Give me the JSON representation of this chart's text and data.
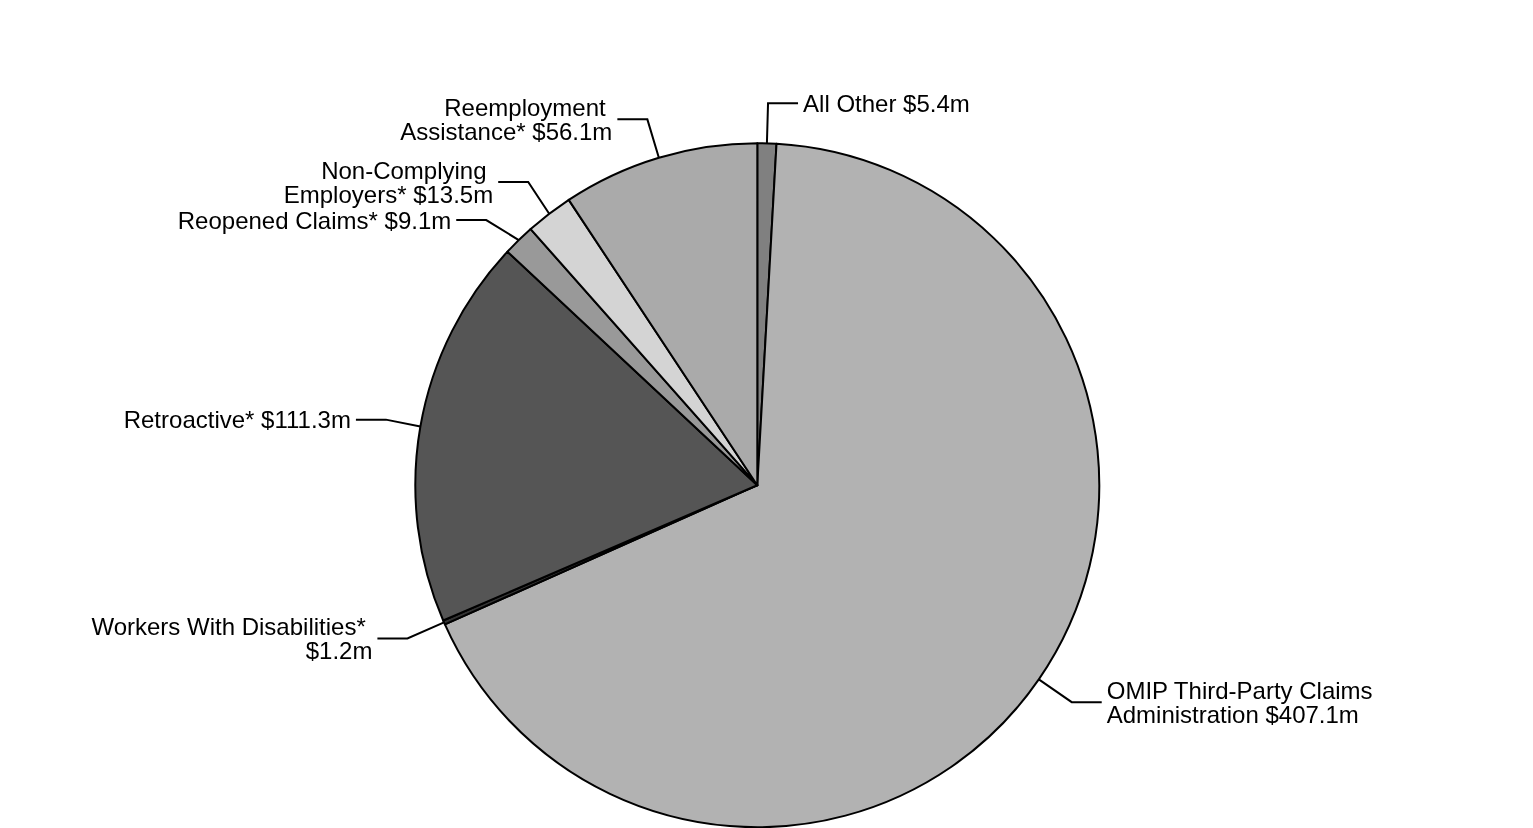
{
  "chart_data": {
    "type": "pie",
    "categories": [
      "All Other",
      "OMIP Third-Party Claims Administration",
      "Workers With Disabilities*",
      "Retroactive*",
      "Reopened Claims*",
      "Non-Complying Employers*",
      "Reemployment Assistance*"
    ],
    "values": [
      5.4,
      407.1,
      1.2,
      111.3,
      9.1,
      13.5,
      56.1
    ],
    "value_labels": [
      "$5.4m",
      "$407.1m",
      "$1.2m",
      "$111.3m",
      "$9.1m",
      "$13.5m",
      "$56.1m"
    ],
    "colors": [
      "#808080",
      "#b2b2b2",
      "#333333",
      "#555555",
      "#999999",
      "#d4d4d4",
      "#aaaaaa"
    ],
    "legend": false
  }
}
